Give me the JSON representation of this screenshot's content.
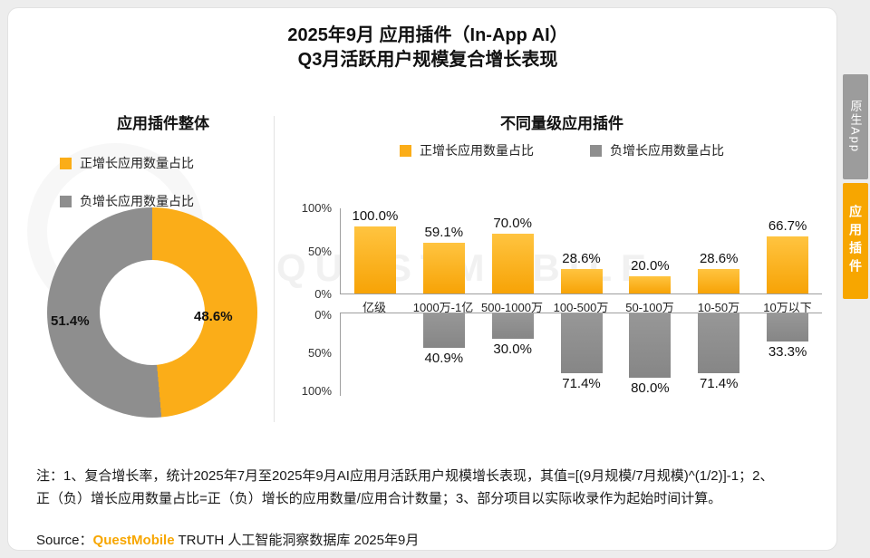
{
  "page": {
    "title_line1": "2025年9月 应用插件（In-App AI）",
    "title_line2": "Q3月活跃用户规模复合增长表现",
    "watermark": "QUESTMOBILE",
    "notes_line1": "注：1、复合增长率，统计2025年7月至2025年9月AI应用月活跃用户规模增长表现，其值=[(9月规模/7月规模)^(1/2)]-1；2、",
    "notes_line2": "正（负）增长应用数量占比=正（负）增长的应用数量/应用合计数量；3、部分项目以实际收录作为起始时间计算。",
    "source_prefix": "Source：",
    "source_brand": "QuestMobile",
    "source_suffix": " TRUTH 人工智能洞察数据库 2025年9月"
  },
  "tabs": [
    {
      "label": "原生App",
      "active": false
    },
    {
      "label": "应用插件",
      "active": true
    }
  ],
  "legend": {
    "positive": "正增长应用数量占比",
    "negative": "负增长应用数量占比"
  },
  "sections": {
    "donut_heading": "应用插件整体",
    "bar_heading": "不同量级应用插件"
  },
  "colors": {
    "positive": "#FBAD18",
    "negative": "#8E8E8E",
    "tab_active": "#F7A600",
    "tab_inactive": "#9C9C9C"
  },
  "chart_data": [
    {
      "type": "pie",
      "title": "应用插件整体",
      "labels": [
        "正增长应用数量占比",
        "负增长应用数量占比"
      ],
      "values": [
        48.6,
        51.4
      ],
      "display_labels": [
        "48.6%",
        "51.4%"
      ],
      "colors": [
        "#FBAD18",
        "#8E8E8E"
      ],
      "donut": true
    },
    {
      "type": "bar",
      "title": "不同量级应用插件",
      "categories": [
        "亿级",
        "1000万-1亿",
        "500-1000万",
        "100-500万",
        "50-100万",
        "10-50万",
        "10万以下"
      ],
      "series": [
        {
          "name": "正增长应用数量占比",
          "values": [
            100.0,
            59.1,
            70.0,
            28.6,
            20.0,
            28.6,
            66.7
          ]
        },
        {
          "name": "负增长应用数量占比",
          "values": [
            0,
            40.9,
            30.0,
            71.4,
            80.0,
            71.4,
            33.3
          ]
        }
      ],
      "y_axis_positive": [
        "100%",
        "50%",
        "0%"
      ],
      "y_axis_negative": [
        "0%",
        "50%",
        "100%"
      ],
      "ylim": [
        0,
        100
      ],
      "legend_position": "top",
      "grid": false
    }
  ]
}
